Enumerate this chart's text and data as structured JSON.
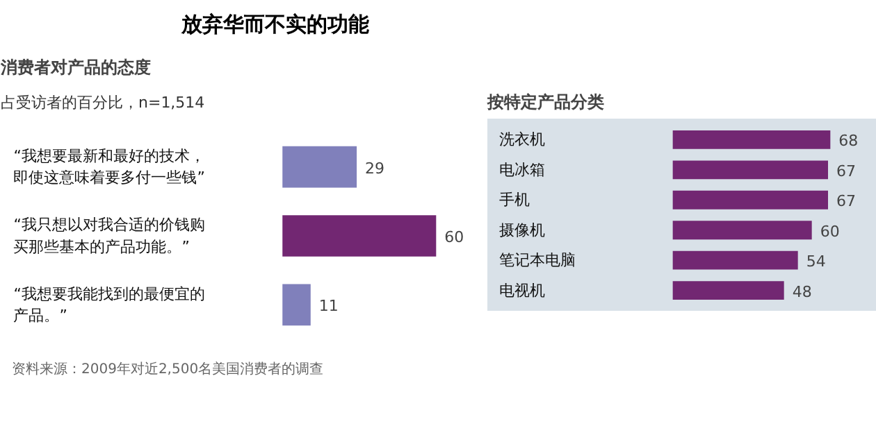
{
  "chart_data": [
    {
      "type": "other",
      "title": "放弃华而不实的功能",
      "annotations": [
        "资料来源：2009年对近2,500名美国消费者的调查"
      ]
    },
    {
      "type": "bar",
      "orientation": "horizontal",
      "title": "消费者对产品的态度",
      "subtitle": "占受访者的百分比，n=1,514",
      "categories": [
        "“我想要最新和最好的技术，即使这意味着要多付一些钱”",
        "“我只想以对我合适的价钱购买那些基本的产品功能。”",
        "“我想要我能找到的最便宜的产品。”"
      ],
      "values": [
        29,
        60,
        11
      ],
      "colors": [
        "#8080bb",
        "#722772",
        "#8080bb"
      ],
      "data_labels": true
    },
    {
      "type": "bar",
      "orientation": "horizontal",
      "title": "按特定产品分类",
      "categories": [
        "洗衣机",
        "电冰箱",
        "手机",
        "摄像机",
        "笔记本电脑",
        "电视机"
      ],
      "values": [
        68,
        67,
        67,
        60,
        54,
        48
      ],
      "color": "#722772",
      "data_labels": true
    }
  ]
}
